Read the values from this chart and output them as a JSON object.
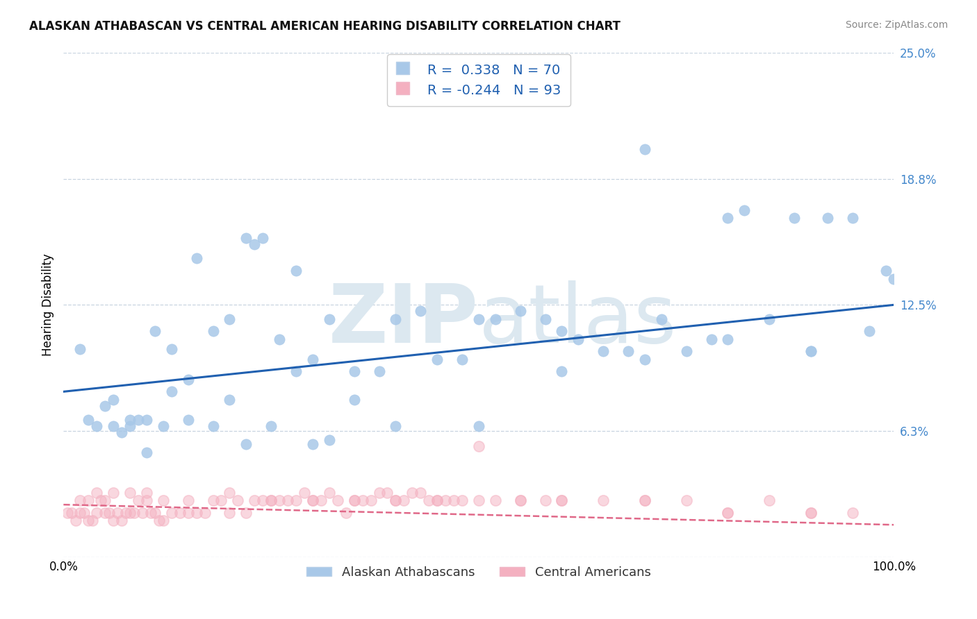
{
  "title": "ALASKAN ATHABASCAN VS CENTRAL AMERICAN HEARING DISABILITY CORRELATION CHART",
  "source": "Source: ZipAtlas.com",
  "ylabel": "Hearing Disability",
  "xlim": [
    0,
    1.0
  ],
  "ylim": [
    0,
    0.25
  ],
  "ytick_vals": [
    0.0,
    0.0625,
    0.125,
    0.1875,
    0.25
  ],
  "ytick_labels": [
    "",
    "6.3%",
    "12.5%",
    "18.8%",
    "25.0%"
  ],
  "xtick_vals": [
    0.0,
    1.0
  ],
  "xtick_labels": [
    "0.0%",
    "100.0%"
  ],
  "blue_R": "0.338",
  "blue_N": "70",
  "pink_R": "-0.244",
  "pink_N": "93",
  "blue_dot_color": "#a8c8e8",
  "pink_dot_color": "#f4b0c0",
  "blue_line_color": "#2060b0",
  "pink_line_color": "#e06888",
  "tick_label_color": "#4488cc",
  "background_color": "#ffffff",
  "grid_color": "#c8d4e0",
  "watermark_color": "#dce8f0",
  "legend_label_blue": "Alaskan Athabascans",
  "legend_label_pink": "Central Americans",
  "blue_x": [
    0.02,
    0.05,
    0.07,
    0.08,
    0.1,
    0.11,
    0.13,
    0.15,
    0.18,
    0.2,
    0.22,
    0.24,
    0.26,
    0.28,
    0.3,
    0.32,
    0.35,
    0.38,
    0.4,
    0.43,
    0.45,
    0.48,
    0.5,
    0.52,
    0.55,
    0.58,
    0.6,
    0.62,
    0.65,
    0.68,
    0.7,
    0.72,
    0.75,
    0.78,
    0.8,
    0.82,
    0.85,
    0.88,
    0.9,
    0.92,
    0.95,
    0.97,
    0.99,
    0.04,
    0.06,
    0.08,
    0.1,
    0.12,
    0.15,
    0.18,
    0.22,
    0.25,
    0.3,
    0.35,
    0.4,
    0.5,
    0.6,
    0.7,
    0.8,
    0.9,
    1.0,
    0.03,
    0.06,
    0.09,
    0.13,
    0.16,
    0.2,
    0.23,
    0.28,
    0.32
  ],
  "blue_y": [
    0.103,
    0.075,
    0.062,
    0.065,
    0.052,
    0.112,
    0.103,
    0.088,
    0.112,
    0.118,
    0.158,
    0.158,
    0.108,
    0.142,
    0.098,
    0.118,
    0.092,
    0.092,
    0.118,
    0.122,
    0.098,
    0.098,
    0.118,
    0.118,
    0.122,
    0.118,
    0.112,
    0.108,
    0.102,
    0.102,
    0.202,
    0.118,
    0.102,
    0.108,
    0.168,
    0.172,
    0.118,
    0.168,
    0.102,
    0.168,
    0.168,
    0.112,
    0.142,
    0.065,
    0.065,
    0.068,
    0.068,
    0.065,
    0.068,
    0.065,
    0.056,
    0.065,
    0.056,
    0.078,
    0.065,
    0.065,
    0.092,
    0.098,
    0.108,
    0.102,
    0.138,
    0.068,
    0.078,
    0.068,
    0.082,
    0.148,
    0.078,
    0.155,
    0.092,
    0.058
  ],
  "pink_x": [
    0.005,
    0.01,
    0.015,
    0.02,
    0.025,
    0.03,
    0.035,
    0.04,
    0.045,
    0.05,
    0.055,
    0.06,
    0.065,
    0.07,
    0.075,
    0.08,
    0.085,
    0.09,
    0.095,
    0.1,
    0.105,
    0.11,
    0.115,
    0.12,
    0.13,
    0.14,
    0.15,
    0.16,
    0.17,
    0.18,
    0.19,
    0.2,
    0.21,
    0.22,
    0.23,
    0.24,
    0.25,
    0.26,
    0.27,
    0.28,
    0.29,
    0.3,
    0.31,
    0.32,
    0.33,
    0.34,
    0.35,
    0.36,
    0.37,
    0.38,
    0.39,
    0.4,
    0.41,
    0.42,
    0.43,
    0.44,
    0.45,
    0.46,
    0.47,
    0.48,
    0.5,
    0.52,
    0.55,
    0.58,
    0.6,
    0.65,
    0.7,
    0.75,
    0.8,
    0.85,
    0.9,
    0.95,
    0.04,
    0.06,
    0.08,
    0.1,
    0.12,
    0.15,
    0.2,
    0.25,
    0.3,
    0.35,
    0.4,
    0.45,
    0.5,
    0.55,
    0.6,
    0.7,
    0.8,
    0.9,
    0.02,
    0.03,
    0.05
  ],
  "pink_y": [
    0.022,
    0.022,
    0.018,
    0.022,
    0.022,
    0.018,
    0.018,
    0.022,
    0.028,
    0.022,
    0.022,
    0.018,
    0.022,
    0.018,
    0.022,
    0.022,
    0.022,
    0.028,
    0.022,
    0.028,
    0.022,
    0.022,
    0.018,
    0.018,
    0.022,
    0.022,
    0.022,
    0.022,
    0.022,
    0.028,
    0.028,
    0.032,
    0.028,
    0.022,
    0.028,
    0.028,
    0.028,
    0.028,
    0.028,
    0.028,
    0.032,
    0.028,
    0.028,
    0.032,
    0.028,
    0.022,
    0.028,
    0.028,
    0.028,
    0.032,
    0.032,
    0.028,
    0.028,
    0.032,
    0.032,
    0.028,
    0.028,
    0.028,
    0.028,
    0.028,
    0.028,
    0.028,
    0.028,
    0.028,
    0.028,
    0.028,
    0.028,
    0.028,
    0.022,
    0.028,
    0.022,
    0.022,
    0.032,
    0.032,
    0.032,
    0.032,
    0.028,
    0.028,
    0.022,
    0.028,
    0.028,
    0.028,
    0.028,
    0.028,
    0.055,
    0.028,
    0.028,
    0.028,
    0.022,
    0.022,
    0.028,
    0.028,
    0.028
  ],
  "blue_trend_x0": 0.0,
  "blue_trend_y0": 0.082,
  "blue_trend_x1": 1.0,
  "blue_trend_y1": 0.125,
  "pink_trend_x0": 0.0,
  "pink_trend_y0": 0.026,
  "pink_trend_x1": 1.0,
  "pink_trend_y1": 0.016
}
